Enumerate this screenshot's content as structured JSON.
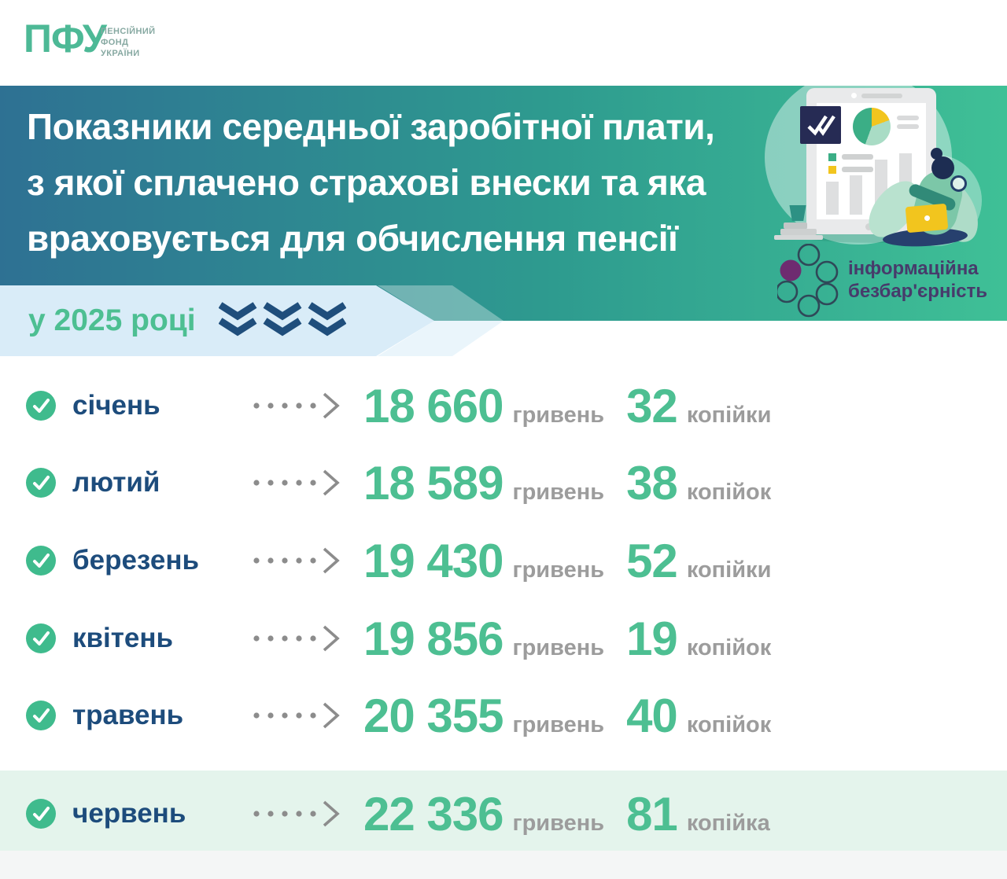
{
  "logo": {
    "abbr": "ПФУ",
    "caption": [
      "ПЕНСІЙНИЙ",
      "ФОНД",
      "УКРАЇНИ"
    ]
  },
  "title": {
    "lines": [
      "Показники середньої заробітної плати,",
      "з якої сплачено страхові внески та яка",
      "враховується для обчислення пенсії"
    ]
  },
  "accessibility_badge": {
    "lines": [
      "інформаційна",
      "безбар'єрність"
    ]
  },
  "ribbon": {
    "year_label": "у 2025 році"
  },
  "rows": [
    {
      "month": "січень",
      "amount": "18 660",
      "amount_unit": "гривень",
      "kopecks": "32",
      "kopecks_unit": "копійки",
      "highlight": false
    },
    {
      "month": "лютий",
      "amount": "18 589",
      "amount_unit": "гривень",
      "kopecks": "38",
      "kopecks_unit": "копійок",
      "highlight": false
    },
    {
      "month": "березень",
      "amount": "19 430",
      "amount_unit": "гривень",
      "kopecks": "52",
      "kopecks_unit": "копійки",
      "highlight": false
    },
    {
      "month": "квітень",
      "amount": "19 856",
      "amount_unit": "гривень",
      "kopecks": "19",
      "kopecks_unit": "копійок",
      "highlight": false
    },
    {
      "month": "травень",
      "amount": "20 355",
      "amount_unit": "гривень",
      "kopecks": "40",
      "kopecks_unit": "копійок",
      "highlight": false
    },
    {
      "month": "червень",
      "amount": "22 336",
      "amount_unit": "гривень",
      "kopecks": "81",
      "kopecks_unit": "копійка",
      "highlight": true
    }
  ],
  "colors": {
    "accent_green": "#4DBF92",
    "month_navy": "#1D4C7C",
    "unit_gray": "#9C9C9C",
    "band_gradient_left": "#2E7193",
    "band_gradient_mid": "#2E9B8F",
    "band_gradient_right": "#3FC096",
    "ribbon_blue": "#D9ECF8",
    "highlight_mint": "#E4F4EC",
    "badge_navy": "#262B54",
    "logo_purple": "#6E2C70",
    "chart_yellow": "#F2C51E",
    "check_green": "#3FBB8D",
    "chevron_navy": "#1F4E7C"
  }
}
